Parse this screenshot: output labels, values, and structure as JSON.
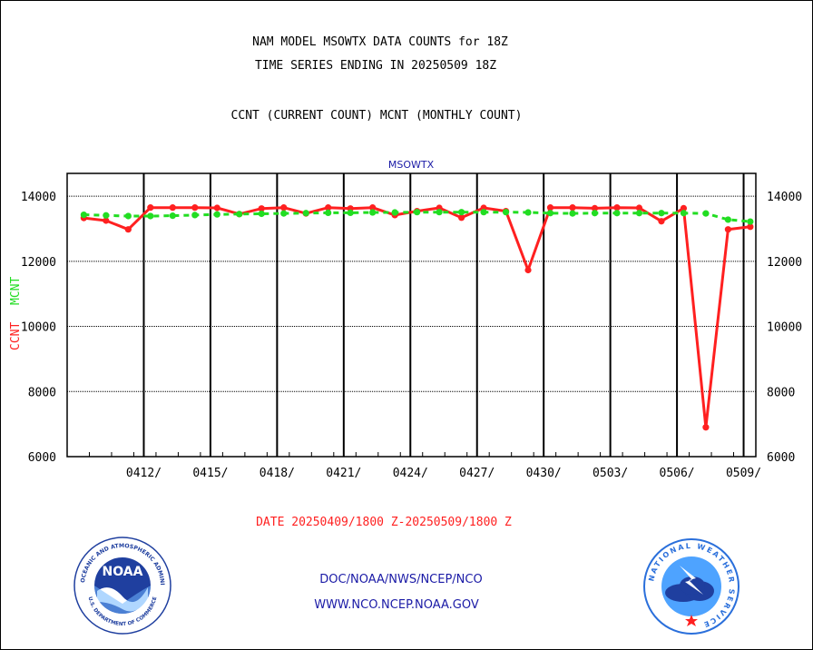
{
  "header": {
    "title_line1": "NAM MODEL MSOWTX DATA COUNTS for 18Z",
    "title_line2": "TIME SERIES ENDING IN 20250509 18Z",
    "subtitle": "CCNT (CURRENT COUNT) MCNT (MONTHLY COUNT)"
  },
  "chart_data": {
    "type": "line",
    "title": "MSOWTX",
    "ylabel_ccnt": "CCNT",
    "ylabel_mcnt": "MCNT",
    "xlabel": "DATE 20250409/1800 Z-20250509/1800 Z",
    "ylim": [
      6000,
      14700
    ],
    "yticks": [
      6000,
      8000,
      10000,
      12000,
      14000
    ],
    "ytick_labels": [
      "6000",
      "8000",
      "10000",
      "12000",
      "14000"
    ],
    "xlim": [
      "2025-04-09",
      "2025-05-10"
    ],
    "xtick_labels": [
      "0412/",
      "0415/",
      "0418/",
      "0421/",
      "0424/",
      "0427/",
      "0430/",
      "0503/",
      "0506/",
      "0509/"
    ],
    "xticks": [
      "2025-04-12",
      "2025-04-15",
      "2025-04-18",
      "2025-04-21",
      "2025-04-24",
      "2025-04-27",
      "2025-04-30",
      "2025-05-03",
      "2025-05-06",
      "2025-05-09"
    ],
    "grid": true,
    "series": [
      {
        "name": "CCNT",
        "color": "#ff2020",
        "style": "solid",
        "points": [
          [
            "2025-04-09",
            13330
          ],
          [
            "2025-04-10",
            13250
          ],
          [
            "2025-04-11",
            12980
          ],
          [
            "2025-04-12",
            13650
          ],
          [
            "2025-04-13",
            13650
          ],
          [
            "2025-04-14",
            13650
          ],
          [
            "2025-04-15",
            13640
          ],
          [
            "2025-04-16",
            13450
          ],
          [
            "2025-04-17",
            13620
          ],
          [
            "2025-04-18",
            13650
          ],
          [
            "2025-04-19",
            13470
          ],
          [
            "2025-04-20",
            13650
          ],
          [
            "2025-04-21",
            13620
          ],
          [
            "2025-04-22",
            13650
          ],
          [
            "2025-04-23",
            13420
          ],
          [
            "2025-04-24",
            13540
          ],
          [
            "2025-04-25",
            13640
          ],
          [
            "2025-04-26",
            13340
          ],
          [
            "2025-04-27",
            13640
          ],
          [
            "2025-04-28",
            13540
          ],
          [
            "2025-04-29",
            11730
          ],
          [
            "2025-04-30",
            13650
          ],
          [
            "2025-05-01",
            13650
          ],
          [
            "2025-05-02",
            13630
          ],
          [
            "2025-05-03",
            13650
          ],
          [
            "2025-05-04",
            13640
          ],
          [
            "2025-05-05",
            13230
          ],
          [
            "2025-05-06",
            13630
          ],
          [
            "2025-05-07",
            6900
          ],
          [
            "2025-05-08",
            12980
          ],
          [
            "2025-05-09",
            13060
          ]
        ]
      },
      {
        "name": "MCNT",
        "color": "#22dd22",
        "style": "dashed",
        "points": [
          [
            "2025-04-09",
            13430
          ],
          [
            "2025-04-10",
            13410
          ],
          [
            "2025-04-11",
            13390
          ],
          [
            "2025-04-12",
            13390
          ],
          [
            "2025-04-13",
            13400
          ],
          [
            "2025-04-14",
            13420
          ],
          [
            "2025-04-15",
            13440
          ],
          [
            "2025-04-16",
            13450
          ],
          [
            "2025-04-17",
            13460
          ],
          [
            "2025-04-18",
            13470
          ],
          [
            "2025-04-19",
            13480
          ],
          [
            "2025-04-20",
            13490
          ],
          [
            "2025-04-21",
            13490
          ],
          [
            "2025-04-22",
            13500
          ],
          [
            "2025-04-23",
            13500
          ],
          [
            "2025-04-24",
            13510
          ],
          [
            "2025-04-25",
            13510
          ],
          [
            "2025-04-26",
            13510
          ],
          [
            "2025-04-27",
            13510
          ],
          [
            "2025-04-28",
            13510
          ],
          [
            "2025-04-29",
            13500
          ],
          [
            "2025-04-30",
            13480
          ],
          [
            "2025-05-01",
            13470
          ],
          [
            "2025-05-02",
            13480
          ],
          [
            "2025-05-03",
            13480
          ],
          [
            "2025-05-04",
            13480
          ],
          [
            "2025-05-05",
            13480
          ],
          [
            "2025-05-06",
            13480
          ],
          [
            "2025-05-07",
            13470
          ],
          [
            "2025-05-08",
            13280
          ],
          [
            "2025-05-09",
            13220
          ]
        ]
      }
    ]
  },
  "footer": {
    "link1": "DOC/NOAA/NWS/NCEP/NCO",
    "link2": "WWW.NCO.NCEP.NOAA.GOV"
  },
  "logos": {
    "noaa_emblem": "NOAA",
    "noaa_ring": "NATIONAL OCEANIC AND ATMOSPHERIC ADMINISTRATION",
    "noaa_ring_bottom": "U.S. DEPARTMENT OF COMMERCE",
    "nws_ring": "NATIONAL WEATHER SERVICE"
  },
  "colors": {
    "ccnt": "#ff2020",
    "mcnt": "#22dd22",
    "link": "#1a1aa6",
    "noaa_blue": "#1f3f9f",
    "nws_blue": "#2a6fdb"
  }
}
